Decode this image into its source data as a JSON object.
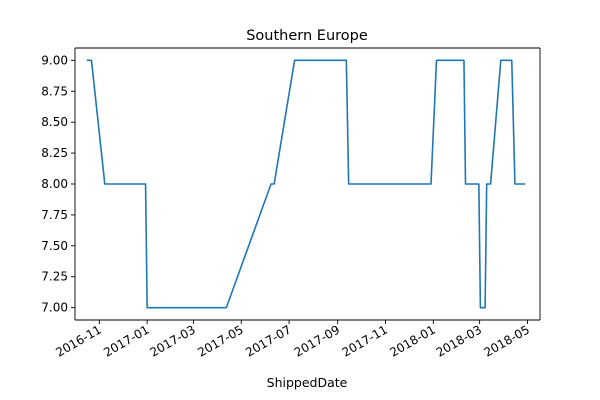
{
  "chart_data": {
    "type": "line",
    "title": "Southern Europe",
    "xlabel": "ShippedDate",
    "ylabel": "",
    "ylim": [
      6.9,
      9.1
    ],
    "xlim": [
      "2016-10-01",
      "2018-05-17"
    ],
    "grid": false,
    "legend": false,
    "line_color": "#1f77b4",
    "yticks": [
      7.0,
      7.25,
      7.5,
      7.75,
      8.0,
      8.25,
      8.5,
      8.75,
      9.0
    ],
    "ytick_labels": [
      "7.00",
      "7.25",
      "7.50",
      "7.75",
      "8.00",
      "8.25",
      "8.50",
      "8.75",
      "9.00"
    ],
    "xticks": [
      "2016-11-01",
      "2017-01-01",
      "2017-03-01",
      "2017-05-01",
      "2017-07-01",
      "2017-09-01",
      "2017-11-01",
      "2018-01-01",
      "2018-03-01",
      "2018-05-01"
    ],
    "xtick_labels": [
      "2016-11",
      "2017-01",
      "2017-03",
      "2017-05",
      "2017-07",
      "2017-09",
      "2017-11",
      "2018-01",
      "2018-03",
      "2018-05"
    ],
    "series": [
      {
        "x": [
          "2016-10-16",
          "2016-10-22",
          "2016-11-08",
          "2016-12-30",
          "2017-01-01",
          "2017-04-12",
          "2017-06-08",
          "2017-06-12",
          "2017-07-08",
          "2017-09-12",
          "2017-09-15",
          "2017-12-29",
          "2018-01-05",
          "2018-02-09",
          "2018-02-11",
          "2018-02-28",
          "2018-03-02",
          "2018-03-08",
          "2018-03-10",
          "2018-03-15",
          "2018-03-28",
          "2018-04-11",
          "2018-04-15",
          "2018-04-28"
        ],
        "values": [
          9.0,
          9.0,
          8.0,
          8.0,
          7.0,
          7.0,
          8.0,
          8.0,
          9.0,
          9.0,
          8.0,
          8.0,
          9.0,
          9.0,
          8.0,
          8.0,
          7.0,
          7.0,
          8.0,
          8.0,
          9.0,
          9.0,
          8.0,
          8.0
        ]
      }
    ]
  }
}
